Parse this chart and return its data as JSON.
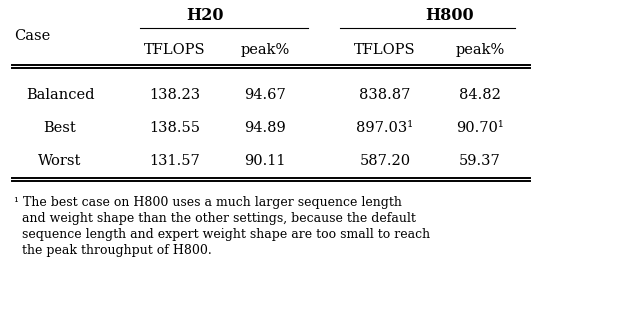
{
  "col_headers_top": [
    "H20",
    "H800"
  ],
  "col_headers_sub": [
    "TFLOPS",
    "peak%",
    "TFLOPS",
    "peak%"
  ],
  "row_label": "Case",
  "rows": [
    {
      "case": "Balanced",
      "h20_tflops": "138.23",
      "h20_peak": "94.67",
      "h800_tflops": "838.87",
      "h800_peak": "84.82",
      "best": false
    },
    {
      "case": "Best",
      "h20_tflops": "138.55",
      "h20_peak": "94.89",
      "h800_tflops": "897.03",
      "h800_peak": "90.70",
      "best": true
    },
    {
      "case": "Worst",
      "h20_tflops": "131.57",
      "h20_peak": "90.11",
      "h800_tflops": "587.20",
      "h800_peak": "59.37",
      "best": false
    }
  ],
  "footnote_lines": [
    "¹ The best case on H800 uses a much larger sequence length",
    "  and weight shape than the other settings, because the default",
    "  sequence length and expert weight shape are too small to reach",
    "  the peak throughput of H800."
  ],
  "bg_color": "#ffffff",
  "text_color": "#000000",
  "font_size": 10.5,
  "footnote_font_size": 9.0,
  "header_font_size": 11.5
}
